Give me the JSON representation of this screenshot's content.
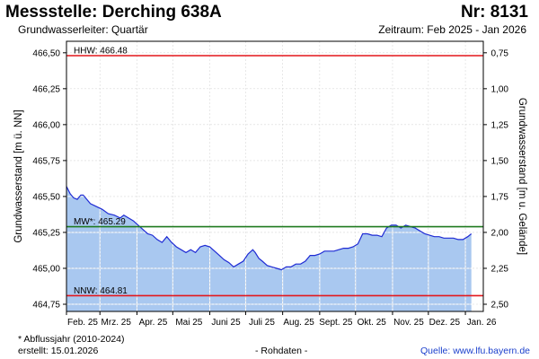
{
  "header": {
    "title": "Messstelle: Derching 638A",
    "nr": "Nr: 8131",
    "subtitle": "Grundwasserleiter: Quartär",
    "period": "Zeitraum: Feb 2025 - Jan 2026"
  },
  "footer": {
    "footnote": "* Abflussjahr (2010-2024)",
    "created": "erstellt:  15.01.2026",
    "raw": "- Rohdaten -",
    "source": "Quelle:  www.lfu.bayern.de"
  },
  "colors": {
    "area_fill": "#a9c8f0",
    "line": "#1f2bd4",
    "hhw": "#e3171c",
    "nnw": "#e3171c",
    "mw": "#1f7a1f",
    "grid": "#ffffff",
    "frame": "#000000"
  },
  "chart_data": {
    "type": "area",
    "ylabel_left": "Grundwasserstand [m ü. NN]",
    "ylabel_right": "Grundwasserstand [m u. Gelände]",
    "ylim_left": [
      464.7,
      466.58
    ],
    "ylim_right_ticks": [
      "0,75",
      "1,00",
      "1,25",
      "1,50",
      "1,75",
      "2,00",
      "2,25",
      "2,50"
    ],
    "ylim_right_tick_values": [
      466.5,
      466.25,
      466.0,
      465.75,
      465.5,
      465.25,
      465.0,
      464.75
    ],
    "y_ticks_left": [
      "466,50",
      "466,25",
      "466,00",
      "465,75",
      "465,50",
      "465,25",
      "465,00",
      "464,75"
    ],
    "y_tick_values_left": [
      466.5,
      466.25,
      466.0,
      465.75,
      465.5,
      465.25,
      465.0,
      464.75
    ],
    "x_ticks": [
      "Feb. 25",
      "Mrz. 25",
      "Apr. 25",
      "Mai 25",
      "Juni 25",
      "Juli 25",
      "Aug. 25",
      "Sept. 25",
      "Okt. 25",
      "Nov. 25",
      "Dez. 25",
      "Jan. 26"
    ],
    "x_range_days": [
      0,
      349
    ],
    "x_tick_days": [
      0,
      28,
      59,
      89,
      120,
      150,
      181,
      212,
      242,
      273,
      303,
      334
    ],
    "grid": true,
    "reference_lines": [
      {
        "key": "hhw",
        "label": "HHW: 466.48",
        "value": 466.48
      },
      {
        "key": "mw",
        "label": "MW*: 465.29",
        "value": 465.29
      },
      {
        "key": "nnw",
        "label": "NNW: 464.81",
        "value": 464.81
      }
    ],
    "series": [
      {
        "x": [
          0,
          3,
          6,
          9,
          12,
          14,
          17,
          20,
          25,
          30,
          35,
          40,
          45,
          48,
          52,
          56,
          60,
          64,
          68,
          72,
          76,
          80,
          84,
          88,
          92,
          96,
          100,
          104,
          108,
          112,
          116,
          120,
          124,
          128,
          132,
          136,
          140,
          144,
          148,
          152,
          156,
          158,
          161,
          164,
          168,
          172,
          176,
          180,
          184,
          188,
          192,
          196,
          200,
          204,
          208,
          212,
          216,
          220,
          224,
          228,
          232,
          236,
          240,
          244,
          248,
          252,
          256,
          260,
          264,
          268,
          272,
          276,
          280,
          284,
          288,
          292,
          296,
          300,
          304,
          308,
          312,
          316,
          320,
          324,
          328,
          332,
          336,
          339
        ],
        "y": [
          465.57,
          465.52,
          465.49,
          465.48,
          465.51,
          465.51,
          465.48,
          465.45,
          465.43,
          465.41,
          465.38,
          465.37,
          465.35,
          465.37,
          465.35,
          465.33,
          465.3,
          465.27,
          465.24,
          465.23,
          465.2,
          465.18,
          465.22,
          465.18,
          465.15,
          465.13,
          465.11,
          465.13,
          465.11,
          465.15,
          465.16,
          465.15,
          465.12,
          465.09,
          465.06,
          465.04,
          465.01,
          465.03,
          465.05,
          465.1,
          465.13,
          465.11,
          465.07,
          465.05,
          465.02,
          465.01,
          465.0,
          464.99,
          465.01,
          465.01,
          465.03,
          465.03,
          465.05,
          465.09,
          465.09,
          465.1,
          465.12,
          465.12,
          465.12,
          465.13,
          465.14,
          465.14,
          465.15,
          465.17,
          465.24,
          465.24,
          465.23,
          465.23,
          465.22,
          465.28,
          465.3,
          465.3,
          465.28,
          465.3,
          465.29,
          465.28,
          465.26,
          465.24,
          465.23,
          465.22,
          465.22,
          465.21,
          465.21,
          465.21,
          465.2,
          465.2,
          465.22,
          465.24
        ]
      }
    ]
  }
}
